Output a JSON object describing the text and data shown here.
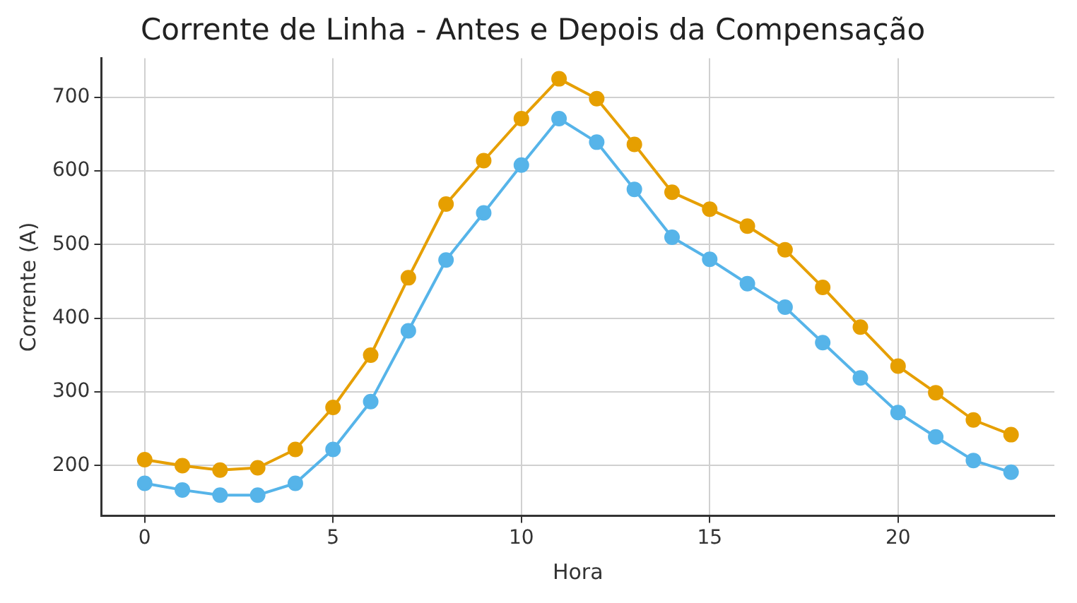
{
  "chart_data": {
    "type": "line",
    "title": "Corrente de Linha - Antes e Depois da Compensação",
    "xlabel": "Hora",
    "ylabel": "Corrente (A)",
    "x": [
      0,
      1,
      2,
      3,
      4,
      5,
      6,
      7,
      8,
      9,
      10,
      11,
      12,
      13,
      14,
      15,
      16,
      17,
      18,
      19,
      20,
      21,
      22,
      23
    ],
    "series": [
      {
        "color": "#e69f00",
        "values": [
          208,
          200,
          194,
          197,
          222,
          279,
          350,
          455,
          555,
          614,
          671,
          725,
          698,
          636,
          571,
          548,
          525,
          493,
          442,
          388,
          335,
          299,
          262,
          242
        ]
      },
      {
        "color": "#56b4e9",
        "values": [
          176,
          167,
          160,
          160,
          176,
          222,
          287,
          383,
          479,
          543,
          608,
          671,
          639,
          575,
          510,
          480,
          447,
          415,
          367,
          319,
          272,
          239,
          207,
          191
        ]
      }
    ],
    "xlim": [
      -1.15,
      24.15
    ],
    "xticks": [
      0,
      5,
      10,
      15,
      20
    ],
    "ylim": [
      132,
      753
    ],
    "yticks": [
      200,
      300,
      400,
      500,
      600,
      700
    ],
    "grid": true,
    "legend": false,
    "marker": "circle",
    "line_style": "solid"
  }
}
